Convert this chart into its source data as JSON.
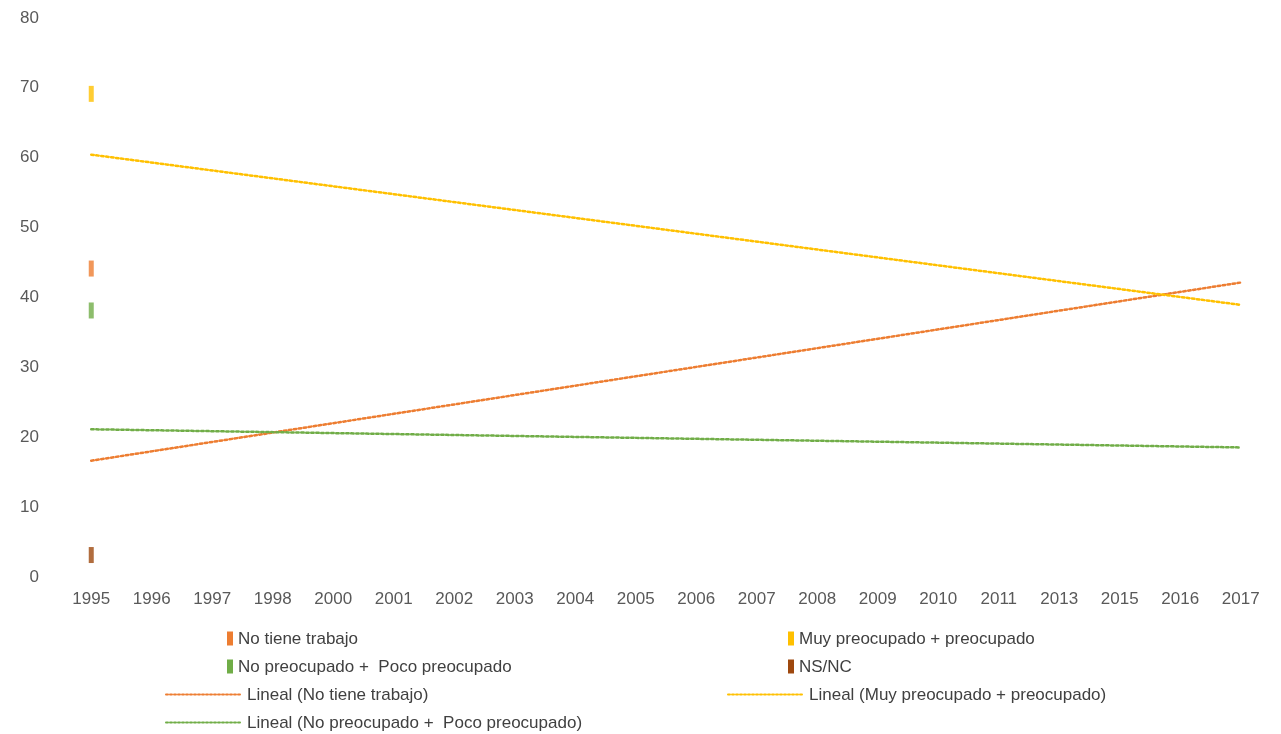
{
  "chart_data": {
    "type": "line",
    "categories": [
      "1995",
      "1996",
      "1997",
      "1998",
      "2000",
      "2001",
      "2002",
      "2003",
      "2004",
      "2005",
      "2006",
      "2007",
      "2008",
      "2009",
      "2010",
      "2011",
      "2013",
      "2015",
      "2016",
      "2017"
    ],
    "series": [
      {
        "name": "No tiene trabajo",
        "color": "#ed7d31",
        "type": "scatter",
        "marker": "square",
        "values": [
          44,
          null,
          null,
          null,
          null,
          null,
          null,
          null,
          null,
          null,
          null,
          null,
          null,
          null,
          null,
          null,
          null,
          null,
          null,
          null
        ]
      },
      {
        "name": "Muy preocupado + preocupado",
        "color": "#ffc000",
        "type": "scatter",
        "marker": "square",
        "values": [
          69,
          null,
          null,
          null,
          null,
          null,
          null,
          null,
          null,
          null,
          null,
          null,
          null,
          null,
          null,
          null,
          null,
          null,
          null,
          null
        ]
      },
      {
        "name": "No preocupado +  Poco preocupado",
        "color": "#70ad47",
        "type": "scatter",
        "marker": "square",
        "values": [
          38,
          null,
          null,
          null,
          null,
          null,
          null,
          null,
          null,
          null,
          null,
          null,
          null,
          null,
          null,
          null,
          null,
          null,
          null,
          null
        ]
      },
      {
        "name": "NS/NC",
        "color": "#9e480e",
        "type": "scatter",
        "marker": "square",
        "values": [
          3,
          null,
          null,
          null,
          null,
          null,
          null,
          null,
          null,
          null,
          null,
          null,
          null,
          null,
          null,
          null,
          null,
          null,
          null,
          null
        ]
      },
      {
        "name": "Lineal (No tiene trabajo)",
        "color": "#ed7d31",
        "line_style": "dotted",
        "values": [
          16.5,
          null,
          null,
          null,
          null,
          null,
          null,
          null,
          null,
          null,
          null,
          null,
          null,
          null,
          null,
          null,
          null,
          null,
          null,
          42
        ]
      },
      {
        "name": "Lineal (Muy preocupado + preocupado)",
        "color": "#ffc000",
        "line_style": "dotted",
        "values": [
          60.3,
          null,
          null,
          null,
          null,
          null,
          null,
          null,
          null,
          null,
          null,
          null,
          null,
          null,
          null,
          null,
          null,
          null,
          null,
          38.8
        ]
      },
      {
        "name": "Lineal (No preocupado +  Poco preocupado)",
        "color": "#70ad47",
        "line_style": "dotted",
        "values": [
          21,
          null,
          null,
          null,
          null,
          null,
          null,
          null,
          null,
          null,
          null,
          null,
          null,
          null,
          null,
          null,
          null,
          null,
          null,
          18.4
        ]
      }
    ],
    "ylim": [
      0,
      80
    ],
    "yticks": [
      0,
      10,
      20,
      30,
      40,
      50,
      60,
      70,
      80
    ],
    "grid": false,
    "legend": "bottom"
  }
}
